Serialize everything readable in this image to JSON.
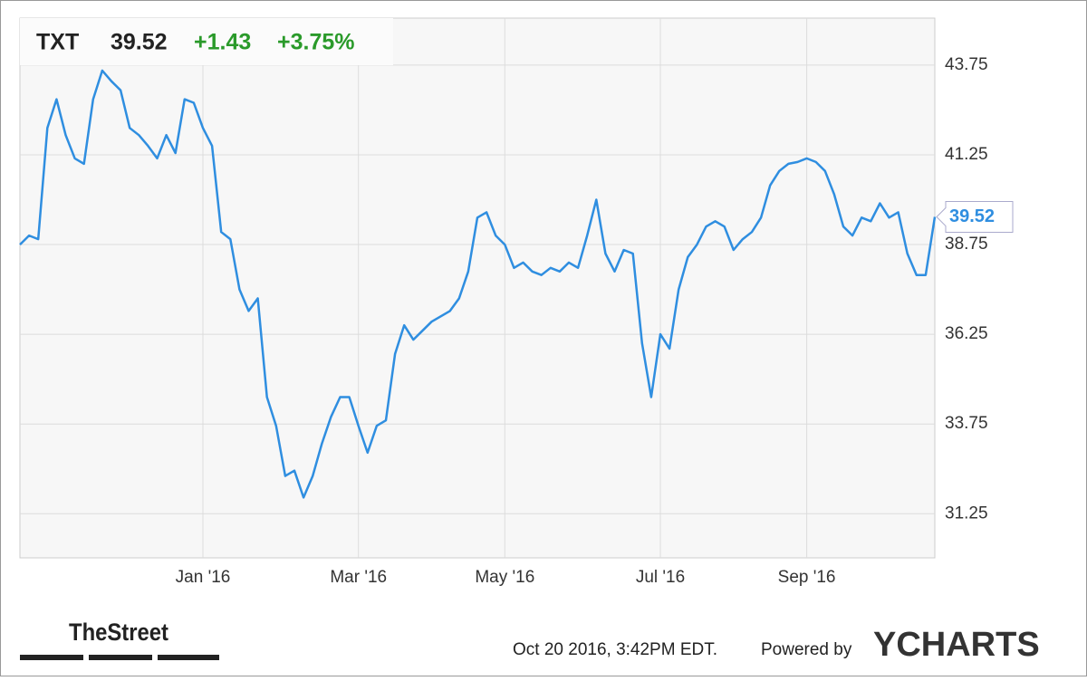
{
  "header": {
    "ticker": "TXT",
    "price": "39.52",
    "change": "+1.43",
    "change_pct": "+3.75%"
  },
  "chart_data": {
    "type": "line",
    "color": "#2f8ee0",
    "grid": true,
    "categories": [
      null,
      null,
      null,
      null,
      null,
      null,
      null,
      null,
      null,
      null,
      null,
      null,
      null,
      null,
      null,
      null,
      null,
      null,
      null,
      null,
      "Jan '16",
      null,
      null,
      null,
      null,
      null,
      null,
      null,
      null,
      null,
      null,
      null,
      null,
      null,
      null,
      null,
      null,
      "Mar '16",
      null,
      null,
      null,
      null,
      null,
      null,
      null,
      null,
      null,
      null,
      null,
      null,
      null,
      null,
      null,
      "May '16",
      null,
      null,
      null,
      null,
      null,
      null,
      null,
      null,
      null,
      null,
      null,
      null,
      null,
      null,
      null,
      null,
      "Jul '16",
      null,
      null,
      null,
      null,
      null,
      null,
      null,
      null,
      null,
      null,
      null,
      null,
      null,
      null,
      null,
      "Sep '16",
      null,
      null,
      null,
      null,
      null,
      null,
      null,
      null,
      null,
      null,
      null,
      null,
      null,
      null
    ],
    "values": [
      38.75,
      39.0,
      38.9,
      42.0,
      42.8,
      41.8,
      41.15,
      41.0,
      42.8,
      43.6,
      43.3,
      43.05,
      42.0,
      41.8,
      41.5,
      41.15,
      41.8,
      41.3,
      42.8,
      42.7,
      42.0,
      41.5,
      39.1,
      38.9,
      37.5,
      36.9,
      37.25,
      34.5,
      33.7,
      32.3,
      32.45,
      31.7,
      32.3,
      33.2,
      33.95,
      34.5,
      34.5,
      33.7,
      32.95,
      33.7,
      33.85,
      35.7,
      36.5,
      36.1,
      36.35,
      36.6,
      36.75,
      36.9,
      37.25,
      38.0,
      39.5,
      39.65,
      39.0,
      38.75,
      38.1,
      38.25,
      38.0,
      37.9,
      38.1,
      38.0,
      38.25,
      38.1,
      39.0,
      40.0,
      38.5,
      38.0,
      38.6,
      38.5,
      36.0,
      34.5,
      36.25,
      35.85,
      37.5,
      38.4,
      38.75,
      39.25,
      39.4,
      39.25,
      38.6,
      38.9,
      39.1,
      39.5,
      40.4,
      40.8,
      41.0,
      41.05,
      41.15,
      41.05,
      40.8,
      40.15,
      39.25,
      39.0,
      39.5,
      39.4,
      39.9,
      39.5,
      39.65,
      38.5,
      37.9,
      37.9,
      39.52
    ],
    "ylim": [
      30.02,
      45.06
    ],
    "yticks": [
      31.25,
      33.75,
      36.25,
      38.75,
      41.25,
      43.75
    ]
  },
  "footer": {
    "brand": "TheStreet",
    "timestamp": "Oct 20 2016, 3:42PM EDT.",
    "powered": "Powered by",
    "logo": "YCHARTS"
  }
}
